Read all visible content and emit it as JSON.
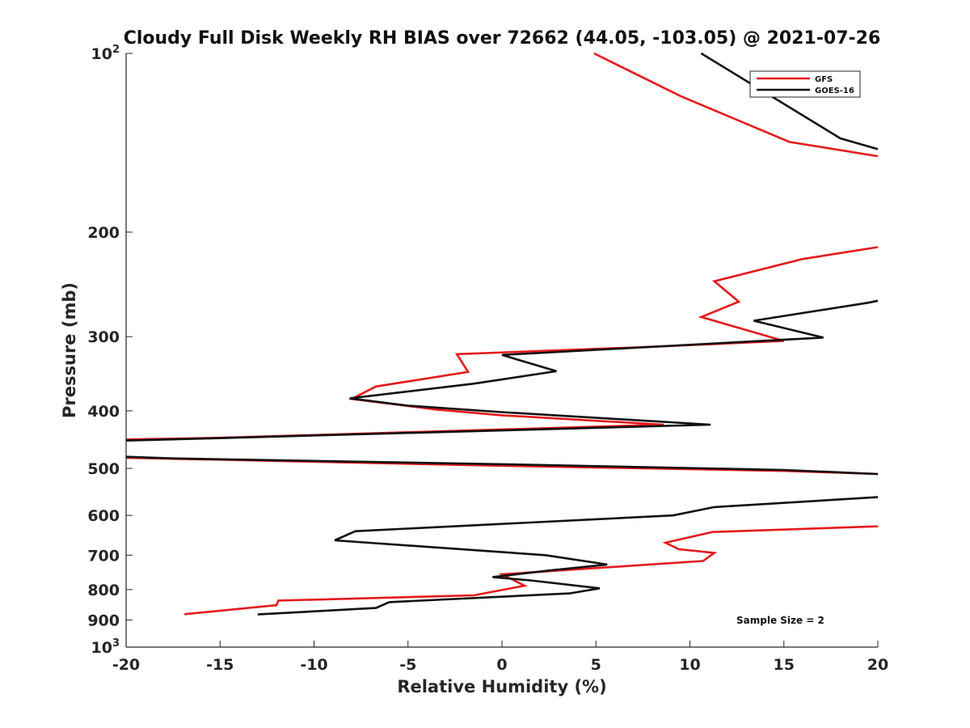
{
  "chart_data": {
    "type": "line",
    "title": "Cloudy Full Disk Weekly RH BIAS over 72662 (44.05, -103.05) @ 2021-07-26",
    "xlabel": "Relative Humidity (%)",
    "ylabel": "Pressure (mb)",
    "xlim": [
      -20,
      20
    ],
    "ylim": [
      100,
      1000
    ],
    "yscale": "log",
    "y_reversed": true,
    "x_ticks": [
      "-20",
      "-15",
      "-10",
      "-5",
      "0",
      "5",
      "10",
      "15",
      "20"
    ],
    "y_ticks": [
      {
        "value": 100,
        "base": "10",
        "exp": "2"
      },
      {
        "value": 200,
        "label": "200"
      },
      {
        "value": 300,
        "label": "300"
      },
      {
        "value": 400,
        "label": "400"
      },
      {
        "value": 500,
        "label": "500"
      },
      {
        "value": 600,
        "label": "600"
      },
      {
        "value": 700,
        "label": "700"
      },
      {
        "value": 800,
        "label": "800"
      },
      {
        "value": 900,
        "label": "900"
      },
      {
        "value": 1000,
        "base": "10",
        "exp": "3"
      }
    ],
    "legend_position": "top-right",
    "annotation": "Sample Size = 2",
    "series": [
      {
        "name": "GFS",
        "color": "#e41a1c",
        "points": [
          [
            4.9,
            100
          ],
          [
            9.5,
            118
          ],
          [
            15.3,
            141
          ],
          [
            20.0,
            149
          ],
          [
            null,
            null
          ],
          [
            20.0,
            212
          ],
          [
            16.0,
            222
          ],
          [
            11.3,
            242
          ],
          [
            12.6,
            262
          ],
          [
            10.6,
            278
          ],
          [
            15.0,
            305
          ],
          [
            8.0,
            312
          ],
          [
            -2.4,
            321
          ],
          [
            -1.8,
            344
          ],
          [
            -6.7,
            364
          ],
          [
            -8.0,
            382
          ],
          [
            -3.5,
            398
          ],
          [
            0.0,
            407
          ],
          [
            8.6,
            422
          ],
          [
            -15.0,
            444
          ],
          [
            -20.0,
            447
          ],
          [
            null,
            null
          ],
          [
            -20.0,
            480
          ],
          [
            -17.0,
            482
          ],
          [
            0.0,
            495
          ],
          [
            15.0,
            505
          ],
          [
            20.0,
            511
          ],
          [
            null,
            null
          ],
          [
            20.0,
            626
          ],
          [
            11.2,
            640
          ],
          [
            8.7,
            667
          ],
          [
            9.4,
            684
          ],
          [
            11.3,
            694
          ],
          [
            10.7,
            716
          ],
          [
            0.0,
            754
          ],
          [
            1.2,
            788
          ],
          [
            -1.5,
            818
          ],
          [
            -11.9,
            835
          ],
          [
            -12.0,
            850
          ],
          [
            -16.9,
            880
          ]
        ]
      },
      {
        "name": "GOES-16",
        "color": "#111111",
        "points": [
          [
            10.6,
            100
          ],
          [
            18.0,
            139
          ],
          [
            20.0,
            145
          ],
          [
            null,
            null
          ],
          [
            20.0,
            261
          ],
          [
            19.5,
            263
          ],
          [
            13.4,
            282
          ],
          [
            17.1,
            301
          ],
          [
            0.0,
            322
          ],
          [
            2.9,
            343
          ],
          [
            -1.5,
            360
          ],
          [
            -8.1,
            381
          ],
          [
            -5.0,
            392
          ],
          [
            0.0,
            402
          ],
          [
            11.1,
            422
          ],
          [
            -15.5,
            445
          ],
          [
            -20.0,
            449
          ],
          [
            null,
            null
          ],
          [
            -20.0,
            478
          ],
          [
            -17.5,
            481
          ],
          [
            0.0,
            492
          ],
          [
            15.0,
            503
          ],
          [
            20.0,
            511
          ],
          [
            null,
            null
          ],
          [
            20.0,
            559
          ],
          [
            11.3,
            581
          ],
          [
            9.1,
            600
          ],
          [
            -7.8,
            638
          ],
          [
            -8.9,
            661
          ],
          [
            2.3,
            700
          ],
          [
            5.6,
            726
          ],
          [
            2.5,
            743
          ],
          [
            -0.5,
            762
          ],
          [
            1.5,
            772
          ],
          [
            5.2,
            796
          ],
          [
            3.6,
            812
          ],
          [
            -6.0,
            840
          ],
          [
            -6.7,
            859
          ],
          [
            -13.0,
            881
          ]
        ]
      }
    ]
  }
}
